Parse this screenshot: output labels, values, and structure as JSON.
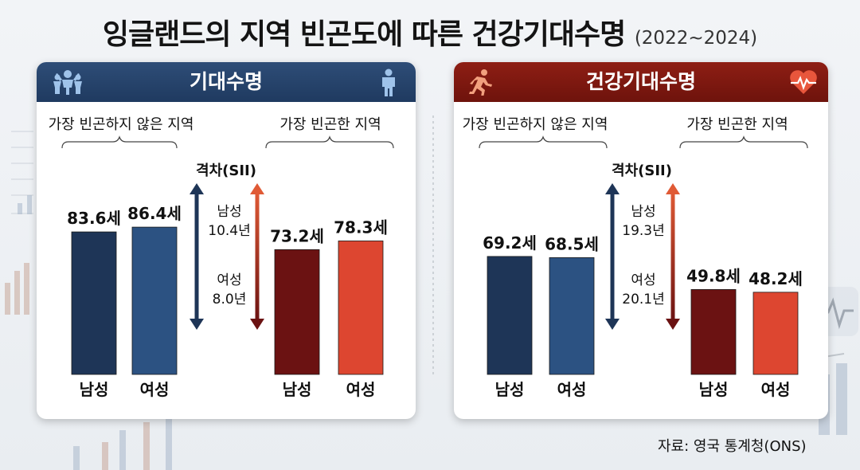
{
  "title": "잉글랜드의 지역 빈곤도에 따른 건강기대수명",
  "period": "(2022~2024)",
  "source": "자료: 영국 통계청(ONS)",
  "colors": {
    "navy": "#1e3557",
    "blue": "#2c5282",
    "darkred": "#6b1212",
    "red": "#dd4630",
    "left_header": "#25436b",
    "right_header": "#7e1a10"
  },
  "icons": {
    "left_header_left": "people-icon",
    "left_header_right": "person-icon",
    "right_header_left": "runner-icon",
    "right_header_right": "heart-pulse-icon"
  },
  "panels": {
    "life": {
      "header": "기대수명",
      "group_labels": [
        "가장 빈곤하지 않은 지역",
        "가장 빈곤한 지역"
      ],
      "gap_title": "격차(SII)",
      "gap_male_label": "남성",
      "gap_male_value": "10.4년",
      "gap_female_label": "여성",
      "gap_female_value": "8.0년"
    },
    "healthy": {
      "header": "건강기대수명",
      "group_labels": [
        "가장 빈곤하지 않은 지역",
        "가장 빈곤한 지역"
      ],
      "gap_title": "격차(SII)",
      "gap_male_label": "남성",
      "gap_male_value": "19.3년",
      "gap_female_label": "여성",
      "gap_female_value": "20.1년"
    }
  },
  "chart_data": [
    {
      "type": "bar",
      "title": "기대수명",
      "groups": [
        "가장 빈곤하지 않은 지역",
        "가장 빈곤한 지역"
      ],
      "categories": [
        "남성",
        "여성",
        "남성",
        "여성"
      ],
      "values": [
        83.6,
        86.4,
        73.2,
        78.3
      ],
      "value_labels": [
        "83.6세",
        "86.4세",
        "73.2세",
        "78.3세"
      ],
      "bar_colors": [
        "#1e3557",
        "#2c5282",
        "#6b1212",
        "#dd4630"
      ],
      "gap": {
        "남성": 10.4,
        "여성": 8.0
      }
    },
    {
      "type": "bar",
      "title": "건강기대수명",
      "groups": [
        "가장 빈곤하지 않은 지역",
        "가장 빈곤한 지역"
      ],
      "categories": [
        "남성",
        "여성",
        "남성",
        "여성"
      ],
      "values": [
        69.2,
        68.5,
        49.8,
        48.2
      ],
      "value_labels": [
        "69.2세",
        "68.5세",
        "49.8세",
        "48.2세"
      ],
      "bar_colors": [
        "#1e3557",
        "#2c5282",
        "#6b1212",
        "#dd4630"
      ],
      "gap": {
        "남성": 19.3,
        "여성": 20.1
      }
    }
  ]
}
